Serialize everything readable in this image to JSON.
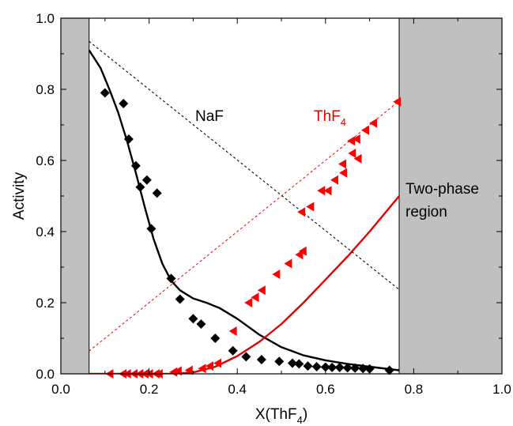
{
  "chart_data": {
    "type": "scatter",
    "title": "",
    "xlabel": "X(ThF",
    "xlabel_subscript": "4",
    "xlabel_suffix": ")",
    "ylabel": "Activity",
    "xlim": [
      0.0,
      1.0
    ],
    "ylim": [
      0.0,
      1.0
    ],
    "xticks": [
      "0.0",
      "0.2",
      "0.4",
      "0.6",
      "0.8",
      "1.0"
    ],
    "yticks": [
      "0.0",
      "0.2",
      "0.4",
      "0.6",
      "0.8",
      "1.0"
    ],
    "grid": false,
    "shaded_regions": [
      {
        "x_range": [
          0.0,
          0.064
        ],
        "color": "#c0c0c0"
      },
      {
        "x_range": [
          0.767,
          1.0
        ],
        "color": "#c0c0c0"
      }
    ],
    "annotations": {
      "naf": "NaF",
      "thf4_main": "ThF",
      "thf4_sub": "4",
      "two_phase_line1": "Two-phase",
      "two_phase_line2": "region"
    },
    "series": [
      {
        "marker": "diamond",
        "color": "#000000",
        "points": [
          [
            0.1,
            0.79
          ],
          [
            0.142,
            0.76
          ],
          [
            0.154,
            0.66
          ],
          [
            0.17,
            0.585
          ],
          [
            0.18,
            0.525
          ],
          [
            0.195,
            0.545
          ],
          [
            0.218,
            0.508
          ],
          [
            0.205,
            0.408
          ],
          [
            0.25,
            0.268
          ],
          [
            0.27,
            0.21
          ],
          [
            0.3,
            0.155
          ],
          [
            0.318,
            0.14
          ],
          [
            0.35,
            0.1
          ],
          [
            0.39,
            0.065
          ],
          [
            0.42,
            0.048
          ],
          [
            0.455,
            0.04
          ],
          [
            0.495,
            0.035
          ],
          [
            0.525,
            0.03
          ],
          [
            0.54,
            0.028
          ],
          [
            0.56,
            0.022
          ],
          [
            0.58,
            0.02
          ],
          [
            0.6,
            0.019
          ],
          [
            0.615,
            0.018
          ],
          [
            0.632,
            0.018
          ],
          [
            0.65,
            0.017
          ],
          [
            0.667,
            0.016
          ],
          [
            0.685,
            0.015
          ],
          [
            0.7,
            0.014
          ],
          [
            0.745,
            0.01
          ]
        ]
      },
      {
        "marker": "triangle-left",
        "color": "#ff0000",
        "points": [
          [
            0.11,
            0.0
          ],
          [
            0.14,
            0.0
          ],
          [
            0.15,
            0.0
          ],
          [
            0.165,
            0.0
          ],
          [
            0.178,
            0.0
          ],
          [
            0.19,
            0.0
          ],
          [
            0.2,
            0.0
          ],
          [
            0.215,
            0.0
          ],
          [
            0.222,
            0.0
          ],
          [
            0.255,
            0.005
          ],
          [
            0.265,
            0.008
          ],
          [
            0.29,
            0.01
          ],
          [
            0.32,
            0.015
          ],
          [
            0.337,
            0.022
          ],
          [
            0.355,
            0.03
          ],
          [
            0.39,
            0.12
          ],
          [
            0.425,
            0.2
          ],
          [
            0.44,
            0.215
          ],
          [
            0.455,
            0.235
          ],
          [
            0.488,
            0.28
          ],
          [
            0.515,
            0.31
          ],
          [
            0.54,
            0.335
          ],
          [
            0.548,
            0.345
          ],
          [
            0.545,
            0.455
          ],
          [
            0.565,
            0.47
          ],
          [
            0.59,
            0.515
          ],
          [
            0.605,
            0.515
          ],
          [
            0.62,
            0.545
          ],
          [
            0.64,
            0.565
          ],
          [
            0.638,
            0.59
          ],
          [
            0.66,
            0.62
          ],
          [
            0.673,
            0.605
          ],
          [
            0.658,
            0.655
          ],
          [
            0.67,
            0.66
          ],
          [
            0.69,
            0.685
          ],
          [
            0.708,
            0.705
          ],
          [
            0.762,
            0.765
          ]
        ]
      },
      {
        "style": "solid",
        "color": "#000000",
        "points": [
          [
            0.064,
            0.91
          ],
          [
            0.09,
            0.86
          ],
          [
            0.11,
            0.8
          ],
          [
            0.13,
            0.735
          ],
          [
            0.15,
            0.655
          ],
          [
            0.17,
            0.565
          ],
          [
            0.19,
            0.47
          ],
          [
            0.21,
            0.38
          ],
          [
            0.23,
            0.31
          ],
          [
            0.25,
            0.262
          ],
          [
            0.27,
            0.235
          ],
          [
            0.3,
            0.212
          ],
          [
            0.33,
            0.2
          ],
          [
            0.36,
            0.185
          ],
          [
            0.4,
            0.155
          ],
          [
            0.45,
            0.11
          ],
          [
            0.5,
            0.075
          ],
          [
            0.55,
            0.052
          ],
          [
            0.6,
            0.038
          ],
          [
            0.65,
            0.028
          ],
          [
            0.7,
            0.02
          ],
          [
            0.767,
            0.01
          ]
        ]
      },
      {
        "style": "solid",
        "color": "#e00000",
        "points": [
          [
            0.064,
            0.0
          ],
          [
            0.25,
            0.0
          ],
          [
            0.3,
            0.004
          ],
          [
            0.35,
            0.02
          ],
          [
            0.4,
            0.05
          ],
          [
            0.45,
            0.09
          ],
          [
            0.5,
            0.14
          ],
          [
            0.55,
            0.2
          ],
          [
            0.6,
            0.265
          ],
          [
            0.65,
            0.33
          ],
          [
            0.7,
            0.4
          ],
          [
            0.767,
            0.5
          ]
        ]
      },
      {
        "style": "dashed",
        "color": "#000000",
        "points": [
          [
            0.064,
            0.935
          ],
          [
            0.767,
            0.237
          ]
        ]
      },
      {
        "style": "dashed",
        "color": "#e00000",
        "points": [
          [
            0.064,
            0.064
          ],
          [
            0.767,
            0.767
          ]
        ]
      }
    ]
  }
}
